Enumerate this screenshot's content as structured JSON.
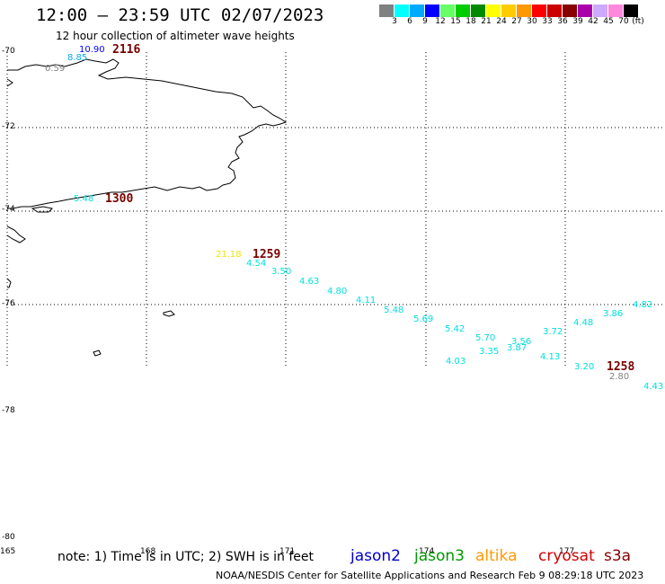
{
  "header": {
    "title": "12:00 – 23:59 UTC 02/07/2023",
    "subtitle": "12 hour collection of altimeter wave heights"
  },
  "color_scale": {
    "unit_label": "(ft)",
    "bins": [
      {
        "label": "3",
        "color": "#808080"
      },
      {
        "label": "6",
        "color": "#00ffff"
      },
      {
        "label": "9",
        "color": "#00aaff"
      },
      {
        "label": "12",
        "color": "#0000ff"
      },
      {
        "label": "15",
        "color": "#66ff66"
      },
      {
        "label": "18",
        "color": "#00cc00"
      },
      {
        "label": "21",
        "color": "#008800"
      },
      {
        "label": "24",
        "color": "#ffff00"
      },
      {
        "label": "27",
        "color": "#ffcc00"
      },
      {
        "label": "30",
        "color": "#ff9900"
      },
      {
        "label": "33",
        "color": "#ff0000"
      },
      {
        "label": "36",
        "color": "#cc0000"
      },
      {
        "label": "39",
        "color": "#880000"
      },
      {
        "label": "42",
        "color": "#aa00aa"
      },
      {
        "label": "45",
        "color": "#ccaaff"
      },
      {
        "label": "70",
        "color": "#ff88dd"
      },
      {
        "label": "",
        "color": "#000000"
      }
    ]
  },
  "axes": {
    "lat_labels": [
      "-70",
      "-72",
      "-74",
      "-76",
      "-78",
      "-80"
    ],
    "lon_labels": [
      "165",
      "168",
      "171",
      "174",
      "177"
    ]
  },
  "observations": [
    {
      "text": "10.90",
      "color": "#0000ff"
    },
    {
      "text": "8.85",
      "color": "#00aaff"
    },
    {
      "text": "0.59",
      "color": "#808080"
    },
    {
      "text": "5.48",
      "color": "#00e0e0"
    },
    {
      "text": "21.18",
      "color": "#e8e800"
    },
    {
      "text": "4.54",
      "color": "#00e0e0"
    },
    {
      "text": "3.50",
      "color": "#00e0e0"
    },
    {
      "text": "4.63",
      "color": "#00e0e0"
    },
    {
      "text": "4.80",
      "color": "#00e0e0"
    },
    {
      "text": "4.11",
      "color": "#00e0e0"
    },
    {
      "text": "5.48",
      "color": "#00e0e0"
    },
    {
      "text": "5.69",
      "color": "#00e0e0"
    },
    {
      "text": "5.42",
      "color": "#00e0e0"
    },
    {
      "text": "5.70",
      "color": "#00e0e0"
    },
    {
      "text": "3.56",
      "color": "#00e0e0"
    },
    {
      "text": "3.87",
      "color": "#00e0e0"
    },
    {
      "text": "3.35",
      "color": "#00e0e0"
    },
    {
      "text": "4.03",
      "color": "#00e0e0"
    },
    {
      "text": "3.72",
      "color": "#00e0e0"
    },
    {
      "text": "4.48",
      "color": "#00e0e0"
    },
    {
      "text": "3.86",
      "color": "#00e0e0"
    },
    {
      "text": "4.82",
      "color": "#00e0e0"
    },
    {
      "text": "4.13",
      "color": "#00e0e0"
    },
    {
      "text": "3.20",
      "color": "#00e0e0"
    },
    {
      "text": "2.80",
      "color": "#808080"
    },
    {
      "text": "4.43",
      "color": "#00e0e0"
    }
  ],
  "pass_times": [
    "2116",
    "1300",
    "1259",
    "1258"
  ],
  "footer": {
    "note": "note: 1) Time is in UTC; 2) SWH is in feet",
    "satellites": [
      {
        "name": "jason2",
        "color": "#0000cc"
      },
      {
        "name": "jason3",
        "color": "#009900"
      },
      {
        "name": "altika",
        "color": "#ff9900"
      },
      {
        "name": "cryosat",
        "color": "#cc0000"
      },
      {
        "name": "s3a",
        "color": "#880000"
      }
    ],
    "credit": "NOAA/NESDIS Center for Satellite Applications and Research    Feb  9 08:29:18 UTC 2023"
  }
}
